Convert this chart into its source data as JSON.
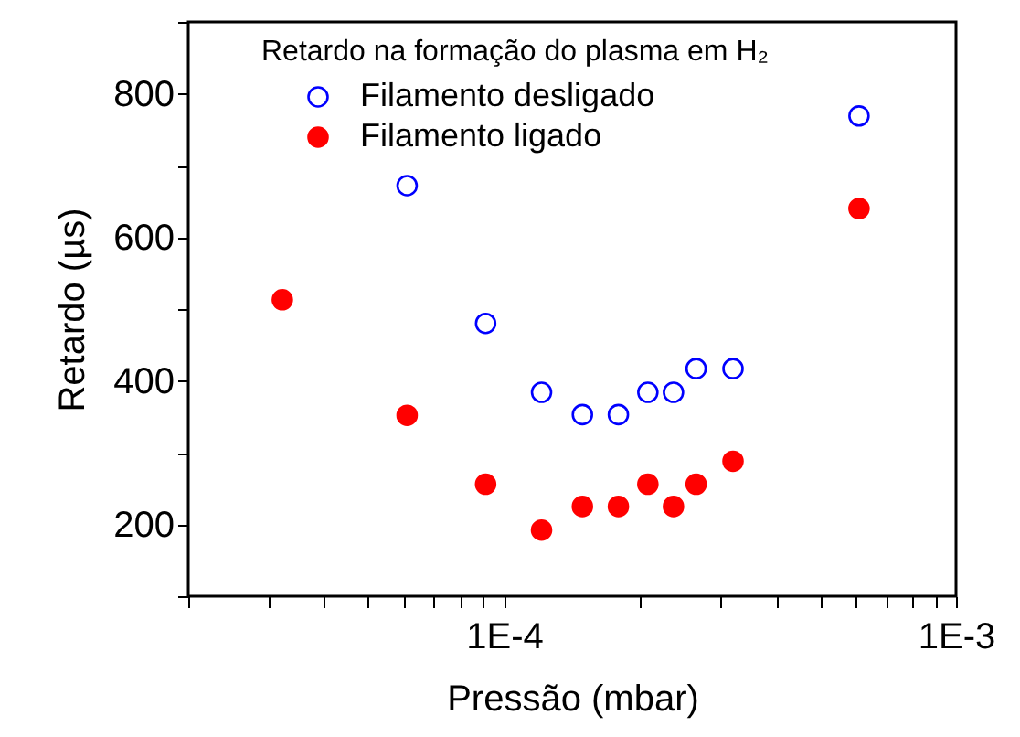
{
  "chart_data": {
    "type": "scatter",
    "xlabel": "Pressão (mbar)",
    "ylabel": "Retardo (µs)",
    "legend_title": "Retardo na formação do plasma em H₂",
    "log": "x",
    "xlim": [
      2e-05,
      0.001
    ],
    "ylim": [
      100,
      900
    ],
    "xticks": [
      {
        "value": 2e-05,
        "label": null
      },
      {
        "value": 3e-05,
        "label": null
      },
      {
        "value": 4e-05,
        "label": null
      },
      {
        "value": 5e-05,
        "label": null
      },
      {
        "value": 6e-05,
        "label": null
      },
      {
        "value": 7e-05,
        "label": null
      },
      {
        "value": 8e-05,
        "label": null
      },
      {
        "value": 9e-05,
        "label": null
      },
      {
        "value": 0.0001,
        "label": "1E-4"
      },
      {
        "value": 0.0002,
        "label": null
      },
      {
        "value": 0.0003,
        "label": null
      },
      {
        "value": 0.0004,
        "label": null
      },
      {
        "value": 0.0005,
        "label": null
      },
      {
        "value": 0.0006,
        "label": null
      },
      {
        "value": 0.0007,
        "label": null
      },
      {
        "value": 0.0008,
        "label": null
      },
      {
        "value": 0.0009,
        "label": null
      },
      {
        "value": 0.001,
        "label": "1E-3"
      }
    ],
    "yticks": [
      {
        "value": 100,
        "label": null
      },
      200,
      {
        "value": 300,
        "label": null
      },
      400,
      {
        "value": 500,
        "label": null
      },
      600,
      {
        "value": 700,
        "label": null
      },
      800,
      {
        "value": 900,
        "label": null
      }
    ],
    "grid": false,
    "legend": "top left",
    "marker": "circle",
    "series": [
      {
        "name": "Filamento desligado",
        "color": "#0000ff",
        "x": [
          6.1e-05,
          9.1e-05,
          0.000121,
          0.000149,
          0.000179,
          0.000208,
          0.000237,
          0.000266,
          0.000321,
          0.00061
        ],
        "values": [
          672,
          480,
          384,
          353,
          353,
          384,
          384,
          417,
          417,
          769
        ]
      },
      {
        "name": "Filamento ligado",
        "color": "#ff0000",
        "x": [
          3.23e-05,
          6.1e-05,
          9.1e-05,
          0.000121,
          0.000149,
          0.000179,
          0.000208,
          0.000237,
          0.000266,
          0.000321,
          0.00061
        ],
        "values": [
          513,
          352,
          256,
          192,
          225,
          225,
          256,
          225,
          256,
          288,
          640
        ]
      }
    ]
  }
}
